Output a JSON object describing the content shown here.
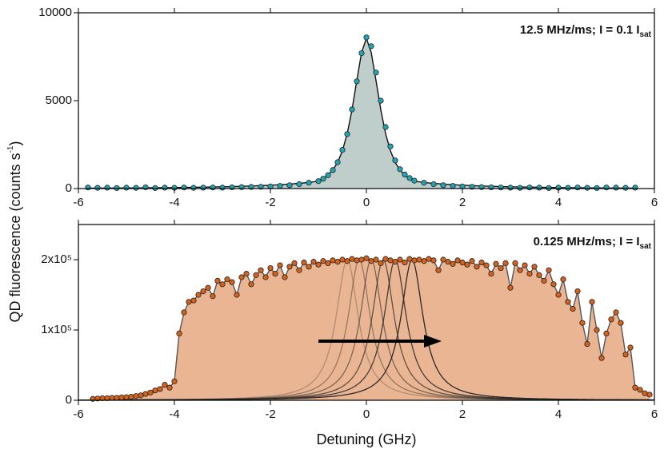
{
  "chart_data": [
    {
      "type": "line",
      "annotation": {
        "text": "12.5 MHz/ms; I = 0.1 I",
        "sub": "sat"
      },
      "ylabel": {
        "text": "QD fluorescence (counts s",
        "sup": "-1",
        "end": ")"
      },
      "xlim": [
        -6,
        6
      ],
      "xticks": [
        -6,
        -4,
        -2,
        0,
        2,
        4,
        6
      ],
      "ylim": [
        0,
        10000
      ],
      "yticks": [
        0,
        5000,
        10000
      ],
      "x": [
        -5.8,
        -5.6,
        -5.4,
        -5.2,
        -5.0,
        -4.8,
        -4.6,
        -4.4,
        -4.2,
        -4.0,
        -3.8,
        -3.6,
        -3.4,
        -3.2,
        -3.0,
        -2.8,
        -2.6,
        -2.4,
        -2.2,
        -2.0,
        -1.8,
        -1.6,
        -1.4,
        -1.2,
        -1.0,
        -0.9,
        -0.8,
        -0.7,
        -0.6,
        -0.5,
        -0.4,
        -0.3,
        -0.2,
        -0.1,
        0,
        0.1,
        0.2,
        0.3,
        0.4,
        0.5,
        0.6,
        0.7,
        0.8,
        0.9,
        1.0,
        1.2,
        1.4,
        1.6,
        1.8,
        2.0,
        2.2,
        2.4,
        2.6,
        2.8,
        3.0,
        3.2,
        3.4,
        3.6,
        3.8,
        4.0,
        4.2,
        4.4,
        4.6,
        4.8,
        5.0,
        5.2,
        5.4,
        5.6
      ],
      "series": [
        {
          "color": "#111111",
          "fill": "#bfcecb",
          "line": true,
          "markers": false,
          "values": [
            25,
            27,
            29,
            31,
            34,
            37,
            41,
            45,
            50,
            56,
            63,
            70,
            79,
            89,
            100,
            113,
            128,
            145,
            165,
            190,
            220,
            255,
            295,
            345,
            420,
            570,
            770,
            1060,
            1480,
            2150,
            3120,
            4480,
            6150,
            7750,
            8550,
            7750,
            6150,
            4480,
            3120,
            2150,
            1480,
            1060,
            770,
            570,
            420,
            345,
            295,
            255,
            220,
            190,
            165,
            145,
            128,
            113,
            100,
            89,
            79,
            70,
            63,
            56,
            50,
            45,
            41,
            37,
            34,
            31,
            29,
            27
          ]
        },
        {
          "color": "#1fa6b4",
          "line": false,
          "markers": true,
          "values": [
            60,
            40,
            50,
            30,
            50,
            40,
            70,
            30,
            50,
            40,
            60,
            40,
            50,
            60,
            50,
            70,
            80,
            90,
            100,
            120,
            150,
            190,
            250,
            330,
            420,
            560,
            760,
            1050,
            1500,
            2200,
            3100,
            4500,
            6100,
            7700,
            8600,
            8100,
            6600,
            5000,
            3500,
            2400,
            1600,
            1100,
            800,
            600,
            450,
            330,
            250,
            190,
            150,
            120,
            100,
            80,
            70,
            60,
            50,
            40,
            60,
            50,
            30,
            50,
            40,
            60,
            40,
            30,
            60,
            50,
            40,
            50
          ]
        }
      ]
    },
    {
      "type": "line",
      "annotation": {
        "text": "0.125 MHz/ms;  I = I",
        "sub": "sat"
      },
      "xlabel": "Detuning (GHz)",
      "xlim": [
        -6,
        6
      ],
      "xticks": [
        -6,
        -4,
        -2,
        0,
        2,
        4,
        6
      ],
      "ylim": [
        0,
        250000
      ],
      "yticks": [
        0,
        {
          "value": 100000,
          "label": "1x10⁵"
        },
        {
          "value": 200000,
          "label": "2x10⁵"
        }
      ],
      "sweep_curves": {
        "centers": [
          -0.4,
          -0.15,
          0.1,
          0.35,
          0.6,
          0.95
        ],
        "peak": 200000,
        "hwhm": 0.28,
        "color": "#2a2a2a"
      },
      "x": [
        -5.7,
        -5.6,
        -5.5,
        -5.4,
        -5.3,
        -5.2,
        -5.1,
        -5.0,
        -4.9,
        -4.8,
        -4.7,
        -4.6,
        -4.5,
        -4.4,
        -4.3,
        -4.2,
        -4.1,
        -4.0,
        -3.9,
        -3.8,
        -3.7,
        -3.6,
        -3.5,
        -3.4,
        -3.3,
        -3.2,
        -3.1,
        -3.0,
        -2.9,
        -2.8,
        -2.7,
        -2.6,
        -2.5,
        -2.4,
        -2.3,
        -2.2,
        -2.1,
        -2.0,
        -1.9,
        -1.8,
        -1.7,
        -1.6,
        -1.5,
        -1.4,
        -1.3,
        -1.2,
        -1.1,
        -1.0,
        -0.9,
        -0.8,
        -0.7,
        -0.6,
        -0.5,
        -0.4,
        -0.3,
        -0.2,
        -0.1,
        0,
        0.1,
        0.2,
        0.3,
        0.4,
        0.5,
        0.6,
        0.7,
        0.8,
        0.9,
        1.0,
        1.1,
        1.2,
        1.3,
        1.4,
        1.5,
        1.6,
        1.7,
        1.8,
        1.9,
        2.0,
        2.1,
        2.2,
        2.3,
        2.4,
        2.5,
        2.6,
        2.7,
        2.8,
        2.9,
        3.0,
        3.1,
        3.2,
        3.3,
        3.4,
        3.5,
        3.6,
        3.7,
        3.8,
        3.9,
        4.0,
        4.1,
        4.2,
        4.3,
        4.4,
        4.5,
        4.6,
        4.7,
        4.8,
        4.9,
        5.0,
        5.1,
        5.2,
        5.3,
        5.4,
        5.5,
        5.6,
        5.7,
        5.8,
        5.9
      ],
      "series": [
        {
          "color": "#d4621c",
          "fill": "#eab592",
          "line": true,
          "line_color": "#555555",
          "markers": true,
          "values": [
            2000,
            2500,
            3000,
            3000,
            3500,
            3500,
            4000,
            4500,
            5000,
            6000,
            7000,
            9000,
            11000,
            14000,
            16000,
            22000,
            18000,
            27000,
            95000,
            125000,
            140000,
            142000,
            150000,
            155000,
            160000,
            148000,
            170000,
            165000,
            172000,
            168000,
            150000,
            175000,
            180000,
            165000,
            178000,
            185000,
            175000,
            188000,
            180000,
            192000,
            175000,
            190000,
            195000,
            185000,
            196000,
            190000,
            197000,
            193000,
            198000,
            195000,
            199000,
            197000,
            200000,
            198000,
            201000,
            199000,
            200000,
            202000,
            198000,
            200000,
            195000,
            201000,
            199000,
            197000,
            200000,
            196000,
            201000,
            199000,
            200000,
            198000,
            201000,
            199000,
            185000,
            200000,
            197000,
            194000,
            199000,
            196000,
            193000,
            198000,
            190000,
            196000,
            192000,
            180000,
            194000,
            188000,
            195000,
            160000,
            195000,
            185000,
            192000,
            180000,
            190000,
            178000,
            170000,
            185000,
            165000,
            150000,
            172000,
            140000,
            130000,
            155000,
            110000,
            80000,
            140000,
            100000,
            60000,
            95000,
            115000,
            125000,
            110000,
            65000,
            75000,
            18000,
            15000,
            10000,
            8000
          ]
        }
      ]
    }
  ]
}
